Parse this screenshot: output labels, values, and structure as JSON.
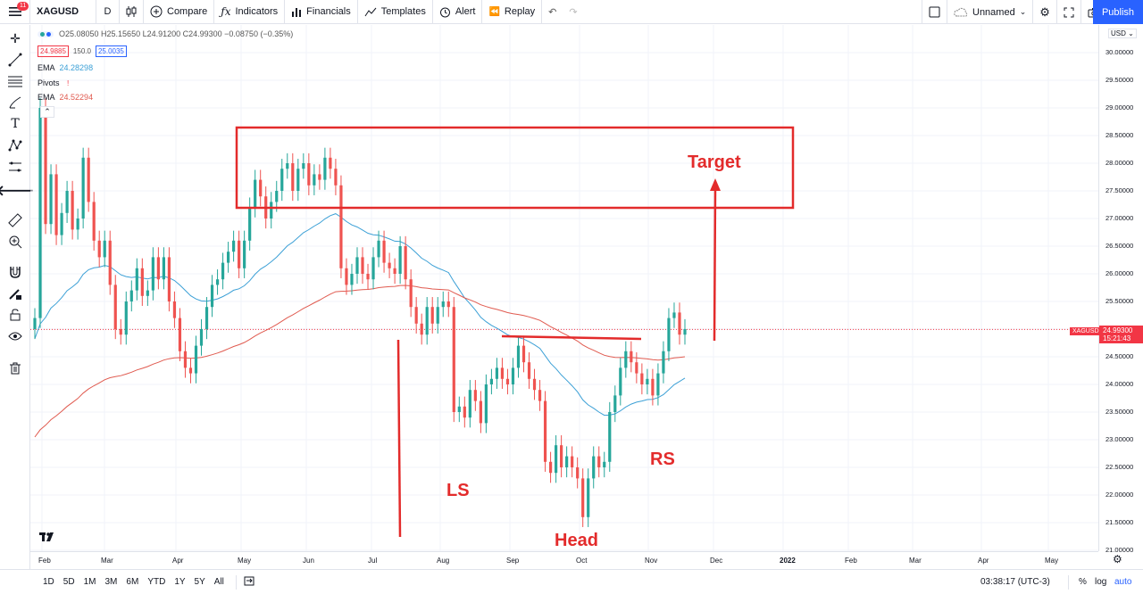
{
  "topbar": {
    "menu_badge": "11",
    "symbol": "XAGUSD",
    "interval": "D",
    "compare": "Compare",
    "indicators": "Indicators",
    "financials": "Financials",
    "templates": "Templates",
    "alert": "Alert",
    "replay": "Replay",
    "layout_name": "Unnamed",
    "publish": "Publish"
  },
  "legend": {
    "ohlc": "O25.08050  H25.15650  L24.91200  C24.99300  −0.08750 (−0.35%)",
    "bid": "24.9885",
    "spread": "150.0",
    "ask": "25.0035",
    "ema1_label": "EMA",
    "ema1_value": "24.28298",
    "pivots_label": "Pivots",
    "ema2_label": "EMA",
    "ema2_value": "24.52294"
  },
  "price_axis": {
    "currency": "USD",
    "ticks": [
      "30.00000",
      "29.50000",
      "29.00000",
      "28.50000",
      "28.00000",
      "27.50000",
      "27.00000",
      "26.50000",
      "26.00000",
      "25.50000",
      "25.00000",
      "24.50000",
      "24.00000",
      "23.50000",
      "23.00000",
      "22.50000",
      "22.00000",
      "21.50000",
      "21.00000"
    ],
    "tag_symbol": "XAGUSD",
    "tag_price": "24.99300",
    "tag_time": "15:21:43"
  },
  "time_axis": {
    "ticks": [
      "Feb",
      "Mar",
      "Apr",
      "May",
      "Jun",
      "Jul",
      "Aug",
      "Sep",
      "Oct",
      "Nov",
      "Dec",
      "2022",
      "Feb",
      "Mar",
      "Apr",
      "May"
    ]
  },
  "annotations": {
    "target": "Target",
    "ls": "LS",
    "head": "Head",
    "rs": "RS"
  },
  "bottom": {
    "ranges": [
      "1D",
      "5D",
      "1M",
      "3M",
      "6M",
      "YTD",
      "1Y",
      "5Y",
      "All"
    ],
    "clock": "03:38:17 (UTC-3)",
    "percent": "%",
    "log": "log",
    "auto": "auto"
  },
  "colors": {
    "up": "#26a69a",
    "down": "#ef5350",
    "ema_fast": "#3ca0d6",
    "ema_slow": "#e05a4f",
    "annotation": "#e32b2b",
    "accent": "#2962ff"
  },
  "chart_data": {
    "type": "candlestick",
    "symbol": "XAGUSD",
    "interval": "D",
    "ylim": [
      21.0,
      30.0
    ],
    "ema_fast_last": 24.28298,
    "ema_slow_last": 24.52294,
    "last_close": 24.993,
    "closes": [
      25.2,
      29.0,
      26.9,
      27.8,
      26.7,
      27.1,
      27.5,
      26.8,
      27.0,
      28.1,
      27.3,
      26.6,
      26.3,
      26.6,
      25.8,
      25.0,
      24.9,
      25.5,
      25.7,
      26.1,
      25.6,
      25.7,
      26.3,
      25.9,
      26.3,
      25.5,
      25.2,
      24.6,
      24.3,
      24.2,
      24.7,
      25.0,
      25.4,
      25.8,
      25.9,
      26.2,
      26.4,
      26.6,
      26.1,
      26.6,
      27.2,
      27.7,
      27.4,
      27.0,
      27.3,
      27.5,
      27.9,
      28.0,
      27.5,
      27.9,
      28.0,
      27.6,
      27.8,
      27.7,
      28.1,
      27.9,
      27.6,
      26.1,
      25.8,
      26.0,
      26.3,
      26.0,
      25.9,
      26.3,
      26.6,
      26.2,
      26.1,
      26.0,
      26.5,
      25.9,
      25.4,
      25.1,
      24.9,
      25.4,
      25.1,
      25.4,
      25.5,
      25.4,
      23.5,
      23.6,
      23.4,
      23.9,
      23.7,
      23.3,
      24.0,
      24.1,
      24.3,
      24.1,
      24.0,
      24.3,
      24.7,
      24.4,
      24.1,
      23.9,
      23.7,
      22.6,
      22.4,
      22.9,
      22.5,
      22.7,
      22.5,
      22.3,
      21.6,
      22.3,
      22.7,
      22.5,
      22.6,
      23.5,
      23.8,
      24.3,
      24.6,
      24.4,
      24.2,
      24.0,
      24.1,
      23.8,
      24.2,
      24.6,
      25.2,
      25.3,
      24.9,
      25.0
    ]
  }
}
